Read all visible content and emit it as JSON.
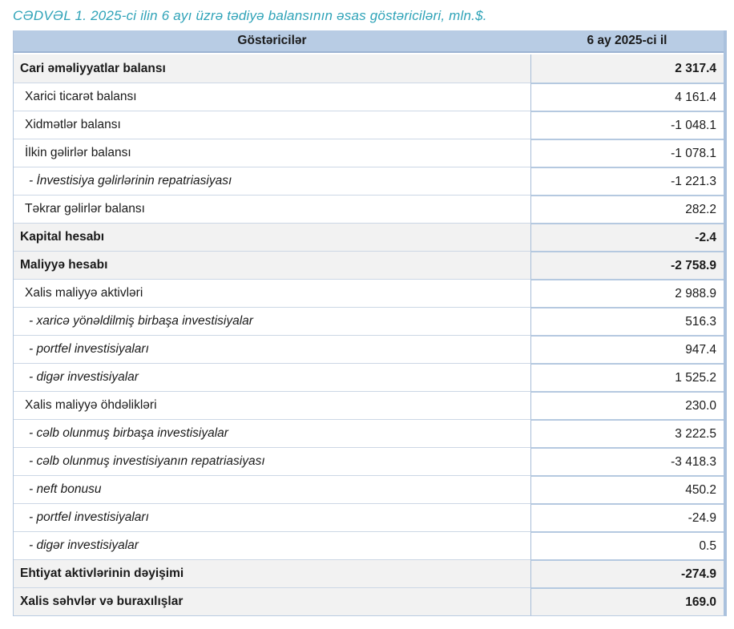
{
  "title": "CƏDVƏL 1. 2025-ci ilin 6 ayı üzrə tədiyə balansının əsas göstəriciləri, mln.$.",
  "colors": {
    "title_text": "#2FA3B8",
    "header_background": "#B8CCE4",
    "section_row_background": "#F2F2F2",
    "border_light": "#CCD7E5",
    "border_blue": "#B5C9E0",
    "outer_right_border": "#AAC1DD",
    "text": "#1A1A1A"
  },
  "table": {
    "columns": [
      "Göstəricilər",
      "6 ay 2025-ci il"
    ],
    "rows": [
      {
        "label": "Cari əməliyyatlar balansı",
        "value": "2 317.4",
        "style": "section"
      },
      {
        "label": "Xarici ticarət balansı",
        "value": "4 161.4",
        "style": "normal"
      },
      {
        "label": "Xidmətlər balansı",
        "value": "-1 048.1",
        "style": "normal"
      },
      {
        "label": "İlkin gəlirlər balansı",
        "value": "-1 078.1",
        "style": "normal"
      },
      {
        "label": "- İnvestisiya gəlirlərinin repatriasiyası",
        "value": "-1 221.3",
        "style": "detail"
      },
      {
        "label": "Təkrar gəlirlər balansı",
        "value": "282.2",
        "style": "normal"
      },
      {
        "label": "Kapital hesabı",
        "value": "-2.4",
        "style": "section"
      },
      {
        "label": "Maliyyə hesabı",
        "value": "-2 758.9",
        "style": "section"
      },
      {
        "label": "Xalis maliyyə aktivləri",
        "value": "2 988.9",
        "style": "normal"
      },
      {
        "label": "- xaricə yönəldilmiş birbaşa investisiyalar",
        "value": "516.3",
        "style": "detail"
      },
      {
        "label": "- portfel investisiyaları",
        "value": "947.4",
        "style": "detail"
      },
      {
        "label": "- digər investisiyalar",
        "value": "1 525.2",
        "style": "detail"
      },
      {
        "label": "Xalis maliyyə öhdəlikləri",
        "value": "230.0",
        "style": "normal"
      },
      {
        "label": "- cəlb olunmuş birbaşa investisiyalar",
        "value": "3 222.5",
        "style": "detail"
      },
      {
        "label": "- cəlb olunmuş investisiyanın repatriasiyası",
        "value": "-3 418.3",
        "style": "detail"
      },
      {
        "label": "- neft bonusu",
        "value": "450.2",
        "style": "detail"
      },
      {
        "label": "- portfel investisiyaları",
        "value": "-24.9",
        "style": "detail"
      },
      {
        "label": "- digər investisiyalar",
        "value": "0.5",
        "style": "detail"
      },
      {
        "label": "Ehtiyat aktivlərinin dəyişimi",
        "value": "-274.9",
        "style": "section"
      },
      {
        "label": "Xalis səhvlər və buraxılışlar",
        "value": "169.0",
        "style": "section"
      }
    ]
  }
}
